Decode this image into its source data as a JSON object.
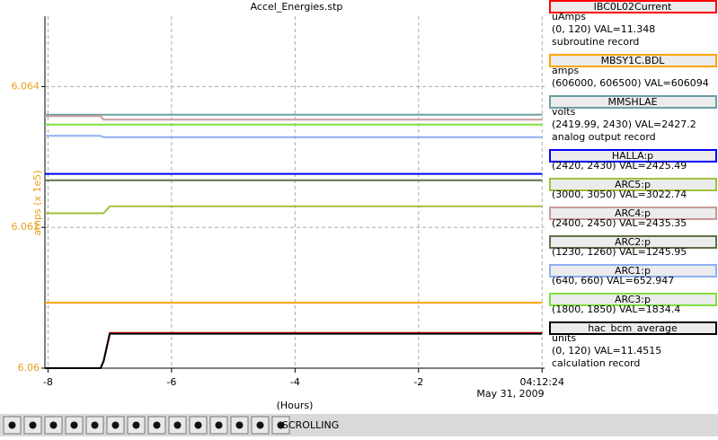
{
  "chart_data": {
    "type": "line",
    "title": "Accel_Energies.stp",
    "ylabel": "amps (x 1e5)",
    "xlabel": "(Hours)",
    "date": "May 31, 2009",
    "xlim": [
      -8.05,
      0.04
    ],
    "ylim": [
      6.06,
      6.065
    ],
    "xticks": [
      -8,
      -6,
      -4,
      -2,
      {
        "value": 0,
        "label": "04:12:24"
      }
    ],
    "yticks": [
      6.06,
      6.062,
      6.064
    ],
    "grid": true,
    "x": [
      -8.05,
      -7.15,
      -7.1,
      -7.0,
      0
    ],
    "series": [
      {
        "name": "IBC0L02Current",
        "color": "#ff0000",
        "values": [
          6.06,
          6.06,
          6.0601,
          6.0605,
          6.0605
        ],
        "info": [
          "uAmps",
          "(0, 120) VAL=11.348",
          "subroutine record"
        ]
      },
      {
        "name": "MBSY1C.BDL",
        "color": "#ffa500",
        "values": [
          6.06093,
          6.06093,
          6.06093,
          6.06093,
          6.06093
        ],
        "info": [
          "amps",
          "(606000, 606500)  VAL=606094"
        ]
      },
      {
        "name": "MMSHLAE",
        "color": "#6a9fa4",
        "values": [
          6.0636,
          6.0636,
          6.0636,
          6.0636,
          6.0636
        ],
        "info": [
          "volts",
          "(2419.99, 2430)  VAL=2427.2",
          "analog output record"
        ]
      },
      {
        "name": "HALLA:p",
        "color": "#0000ff",
        "values": [
          6.06276,
          6.06276,
          6.06276,
          6.06276,
          6.06276
        ],
        "info": [
          "(2420, 2430)  VAL=2425.49"
        ]
      },
      {
        "name": "ARC5:p",
        "color": "#a0c040",
        "values": [
          6.0622,
          6.0622,
          6.0622,
          6.0623,
          6.0623
        ],
        "info": [
          "(3000, 3050)  VAL=3022.74"
        ]
      },
      {
        "name": "ARC4:p",
        "color": "#c89a9a",
        "values": [
          6.06358,
          6.06358,
          6.06353,
          6.06353,
          6.06353
        ],
        "info": [
          "(2400, 2450)  VAL=2435.35"
        ]
      },
      {
        "name": "ARC2:p",
        "color": "#5f7048",
        "values": [
          6.06267,
          6.06267,
          6.06267,
          6.06267,
          6.06267
        ],
        "info": [
          "(1230, 1260)  VAL=1245.95"
        ]
      },
      {
        "name": "ARC1:p",
        "color": "#8fb0f0",
        "values": [
          6.0633,
          6.0633,
          6.06328,
          6.06328,
          6.06328
        ],
        "info": [
          "(640, 660)  VAL=652.947"
        ]
      },
      {
        "name": "ARC3:p",
        "color": "#80e040",
        "values": [
          6.06346,
          6.06346,
          6.06346,
          6.06346,
          6.06346
        ],
        "info": [
          "(1800, 1850)  VAL=1834.4"
        ]
      },
      {
        "name": "hac_bcm_average",
        "color": "#000000",
        "values": [
          6.06,
          6.06,
          6.0601,
          6.06049,
          6.06049
        ],
        "info": [
          "units",
          "(0, 120) VAL=11.4515",
          "calculation record"
        ]
      }
    ]
  },
  "toolbar": {
    "status": "SCROLLING"
  }
}
